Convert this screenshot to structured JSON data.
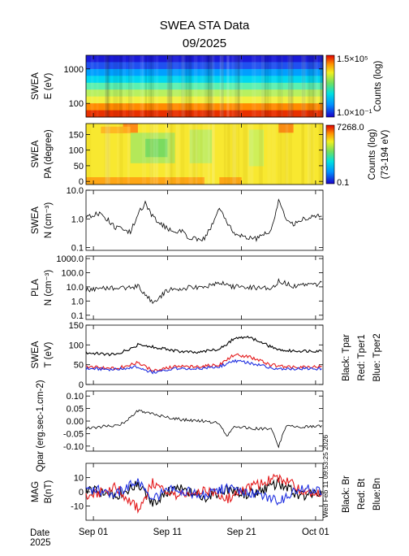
{
  "chart_data": {
    "title": "SWEA STA Data",
    "subtitle": "09/2025",
    "timestamp": "Wed Feb 11 09:53:25 2026",
    "x": {
      "date_label": "Date",
      "year_label": "2025",
      "range": [
        "2025-08-31",
        "2025-10-02"
      ],
      "ticks": [
        {
          "date": "2025-09-01",
          "label": "Sep 01"
        },
        {
          "date": "2025-09-11",
          "label": "Sep 11"
        },
        {
          "date": "2025-09-21",
          "label": "Sep 21"
        },
        {
          "date": "2025-10-01",
          "label": "Oct 01"
        }
      ]
    },
    "panels": [
      {
        "id": "swea-energy",
        "type": "heatmap",
        "ylabel": [
          "SWEA",
          "E (eV)"
        ],
        "yscale": "log",
        "ylim": [
          40,
          2500
        ],
        "yticks": [
          {
            "v": 1000,
            "label": "1000"
          },
          {
            "v": 100,
            "label": "100"
          }
        ],
        "colorbar": {
          "scale": "log",
          "max_label": "1.5×10⁵",
          "min_label": "1.0×10⁻¹",
          "title": [
            "Counts (log)"
          ]
        }
      },
      {
        "id": "swea-pa",
        "type": "heatmap",
        "ylabel": [
          "SWEA",
          "PA (degree)"
        ],
        "yscale": "linear",
        "ylim": [
          -10,
          185
        ],
        "yticks": [
          {
            "v": 150,
            "label": "150"
          },
          {
            "v": 100,
            "label": "100"
          },
          {
            "v": 50,
            "label": "50"
          },
          {
            "v": 0,
            "label": "0"
          }
        ],
        "colorbar": {
          "scale": "log",
          "max_label": "7268.0",
          "min_label": "0.1",
          "title": [
            "Counts (log)",
            "(73-194 eV)"
          ]
        }
      },
      {
        "id": "swea-density",
        "type": "line",
        "ylabel": [
          "SWEA",
          "N (cm⁻³)"
        ],
        "yscale": "log",
        "ylim": [
          0.08,
          10
        ],
        "yticks": [
          {
            "v": 10,
            "label": "10.0"
          },
          {
            "v": 1,
            "label": "1.0"
          },
          {
            "v": 0.1,
            "label": "0.1"
          }
        ],
        "series": [
          {
            "color": "#000000",
            "x": [
              "2025-08-31",
              "2025-09-02",
              "2025-09-04",
              "2025-09-06",
              "2025-09-07",
              "2025-09-08",
              "2025-09-09",
              "2025-09-11",
              "2025-09-13",
              "2025-09-14",
              "2025-09-16",
              "2025-09-17",
              "2025-09-18",
              "2025-09-20",
              "2025-09-23",
              "2025-09-25",
              "2025-09-26",
              "2025-09-27",
              "2025-09-28",
              "2025-09-29",
              "2025-10-01",
              "2025-10-02"
            ],
            "y": [
              1.2,
              1.6,
              0.5,
              0.35,
              1.5,
              3.5,
              1.2,
              0.45,
              0.35,
              0.2,
              0.2,
              0.6,
              2.5,
              0.3,
              0.2,
              0.4,
              4.5,
              1.0,
              0.6,
              0.9,
              1.3,
              1.5
            ]
          }
        ]
      },
      {
        "id": "pla-density",
        "type": "line",
        "ylabel": [
          "PLA",
          "N (cm⁻³)"
        ],
        "yscale": "log",
        "ylim": [
          0.05,
          1500
        ],
        "yticks": [
          {
            "v": 1000,
            "label": "1000.0"
          },
          {
            "v": 100,
            "label": "100.0"
          },
          {
            "v": 10,
            "label": "10.0"
          },
          {
            "v": 1,
            "label": "1.0"
          },
          {
            "v": 0.1,
            "label": "0.1"
          }
        ],
        "series": [
          {
            "color": "#000000",
            "x": [
              "2025-08-31",
              "2025-09-03",
              "2025-09-06",
              "2025-09-07",
              "2025-09-08",
              "2025-09-09",
              "2025-09-10",
              "2025-09-11",
              "2025-09-13",
              "2025-09-16",
              "2025-09-18",
              "2025-09-20",
              "2025-09-23",
              "2025-09-25",
              "2025-09-26",
              "2025-09-28",
              "2025-10-01",
              "2025-10-02"
            ],
            "y": [
              6,
              9,
              8,
              12,
              3,
              0.8,
              2,
              6,
              8,
              10,
              20,
              10,
              9,
              8,
              25,
              12,
              15,
              20
            ]
          }
        ]
      },
      {
        "id": "swea-temperature",
        "type": "line",
        "ylabel": [
          "SWEA",
          "T (eV)"
        ],
        "yscale": "linear",
        "ylim": [
          0,
          150
        ],
        "yticks": [
          {
            "v": 150,
            "label": "150"
          },
          {
            "v": 100,
            "label": "100"
          },
          {
            "v": 50,
            "label": "50"
          },
          {
            "v": 0,
            "label": "0"
          }
        ],
        "legend": [
          "Black: Tpar",
          "Red: Tper1",
          "Blue: Tper2"
        ],
        "series": [
          {
            "name": "Tpar",
            "color": "#000000",
            "x": [
              "2025-08-31",
              "2025-09-04",
              "2025-09-07",
              "2025-09-09",
              "2025-09-12",
              "2025-09-15",
              "2025-09-18",
              "2025-09-20",
              "2025-09-22",
              "2025-09-25",
              "2025-09-27",
              "2025-10-02"
            ],
            "y": [
              80,
              75,
              100,
              95,
              85,
              80,
              90,
              115,
              120,
              95,
              85,
              85
            ]
          },
          {
            "name": "Tper1",
            "color": "#e41a1c",
            "x": [
              "2025-08-31",
              "2025-09-04",
              "2025-09-07",
              "2025-09-09",
              "2025-09-12",
              "2025-09-15",
              "2025-09-18",
              "2025-09-20",
              "2025-09-22",
              "2025-09-25",
              "2025-09-27",
              "2025-10-02"
            ],
            "y": [
              45,
              40,
              55,
              35,
              45,
              45,
              50,
              75,
              70,
              50,
              45,
              45
            ]
          },
          {
            "name": "Tper2",
            "color": "#1f2fe0",
            "x": [
              "2025-08-31",
              "2025-09-04",
              "2025-09-07",
              "2025-09-09",
              "2025-09-12",
              "2025-09-15",
              "2025-09-18",
              "2025-09-20",
              "2025-09-22",
              "2025-09-25",
              "2025-09-27",
              "2025-10-02"
            ],
            "y": [
              40,
              38,
              45,
              30,
              40,
              40,
              45,
              60,
              55,
              42,
              40,
              40
            ]
          }
        ]
      },
      {
        "id": "qpar",
        "type": "line",
        "ylabel": [
          "Qpar (erg.sec-1.cm-2)"
        ],
        "yscale": "linear",
        "ylim": [
          -0.12,
          0.12
        ],
        "yticks": [
          {
            "v": 0.1,
            "label": "0.10"
          },
          {
            "v": 0.05,
            "label": "0.05"
          },
          {
            "v": 0,
            "label": "0.00"
          },
          {
            "v": -0.05,
            "label": "-0.05"
          },
          {
            "v": -0.1,
            "label": "-0.10"
          }
        ],
        "series": [
          {
            "color": "#000000",
            "x": [
              "2025-08-31",
              "2025-09-03",
              "2025-09-05",
              "2025-09-07",
              "2025-09-08",
              "2025-09-10",
              "2025-09-13",
              "2025-09-16",
              "2025-09-18",
              "2025-09-19",
              "2025-09-20",
              "2025-09-23",
              "2025-09-25",
              "2025-09-26",
              "2025-09-27",
              "2025-09-29",
              "2025-10-02"
            ],
            "y": [
              -0.03,
              -0.02,
              -0.01,
              0.04,
              0.035,
              0.02,
              0.005,
              0.0,
              -0.01,
              -0.06,
              -0.02,
              -0.03,
              -0.03,
              -0.1,
              -0.02,
              -0.025,
              -0.02
            ]
          }
        ]
      },
      {
        "id": "mag",
        "type": "line",
        "ylabel": [
          "MAG",
          "B(nT)"
        ],
        "yscale": "linear",
        "ylim": [
          -20,
          20
        ],
        "yticks": [
          {
            "v": 10,
            "label": "10"
          },
          {
            "v": 0,
            "label": "0"
          },
          {
            "v": -10,
            "label": "-10"
          }
        ],
        "legend": [
          "Black: Br",
          "Red: Bt",
          "Blue:Bn"
        ],
        "series": [
          {
            "name": "Br",
            "color": "#000000",
            "x": [
              "2025-08-31",
              "2025-09-04",
              "2025-09-07",
              "2025-09-09",
              "2025-09-12",
              "2025-09-16",
              "2025-09-19",
              "2025-09-22",
              "2025-09-26",
              "2025-09-29",
              "2025-10-02"
            ],
            "y": [
              2,
              -3,
              5,
              -8,
              3,
              -4,
              2,
              -2,
              6,
              -3,
              1
            ]
          },
          {
            "name": "Bt",
            "color": "#e41a1c",
            "x": [
              "2025-08-31",
              "2025-09-04",
              "2025-09-07",
              "2025-09-09",
              "2025-09-12",
              "2025-09-16",
              "2025-09-19",
              "2025-09-22",
              "2025-09-26",
              "2025-09-29",
              "2025-10-02"
            ],
            "y": [
              -4,
              3,
              -12,
              6,
              -3,
              2,
              -5,
              3,
              10,
              2,
              -2
            ]
          },
          {
            "name": "Bn",
            "color": "#1f2fe0",
            "x": [
              "2025-08-31",
              "2025-09-04",
              "2025-09-07",
              "2025-09-09",
              "2025-09-12",
              "2025-09-16",
              "2025-09-19",
              "2025-09-22",
              "2025-09-26",
              "2025-09-29",
              "2025-10-02"
            ],
            "y": [
              3,
              -2,
              8,
              -4,
              2,
              -3,
              3,
              -1,
              -6,
              2,
              1
            ]
          }
        ]
      }
    ]
  }
}
